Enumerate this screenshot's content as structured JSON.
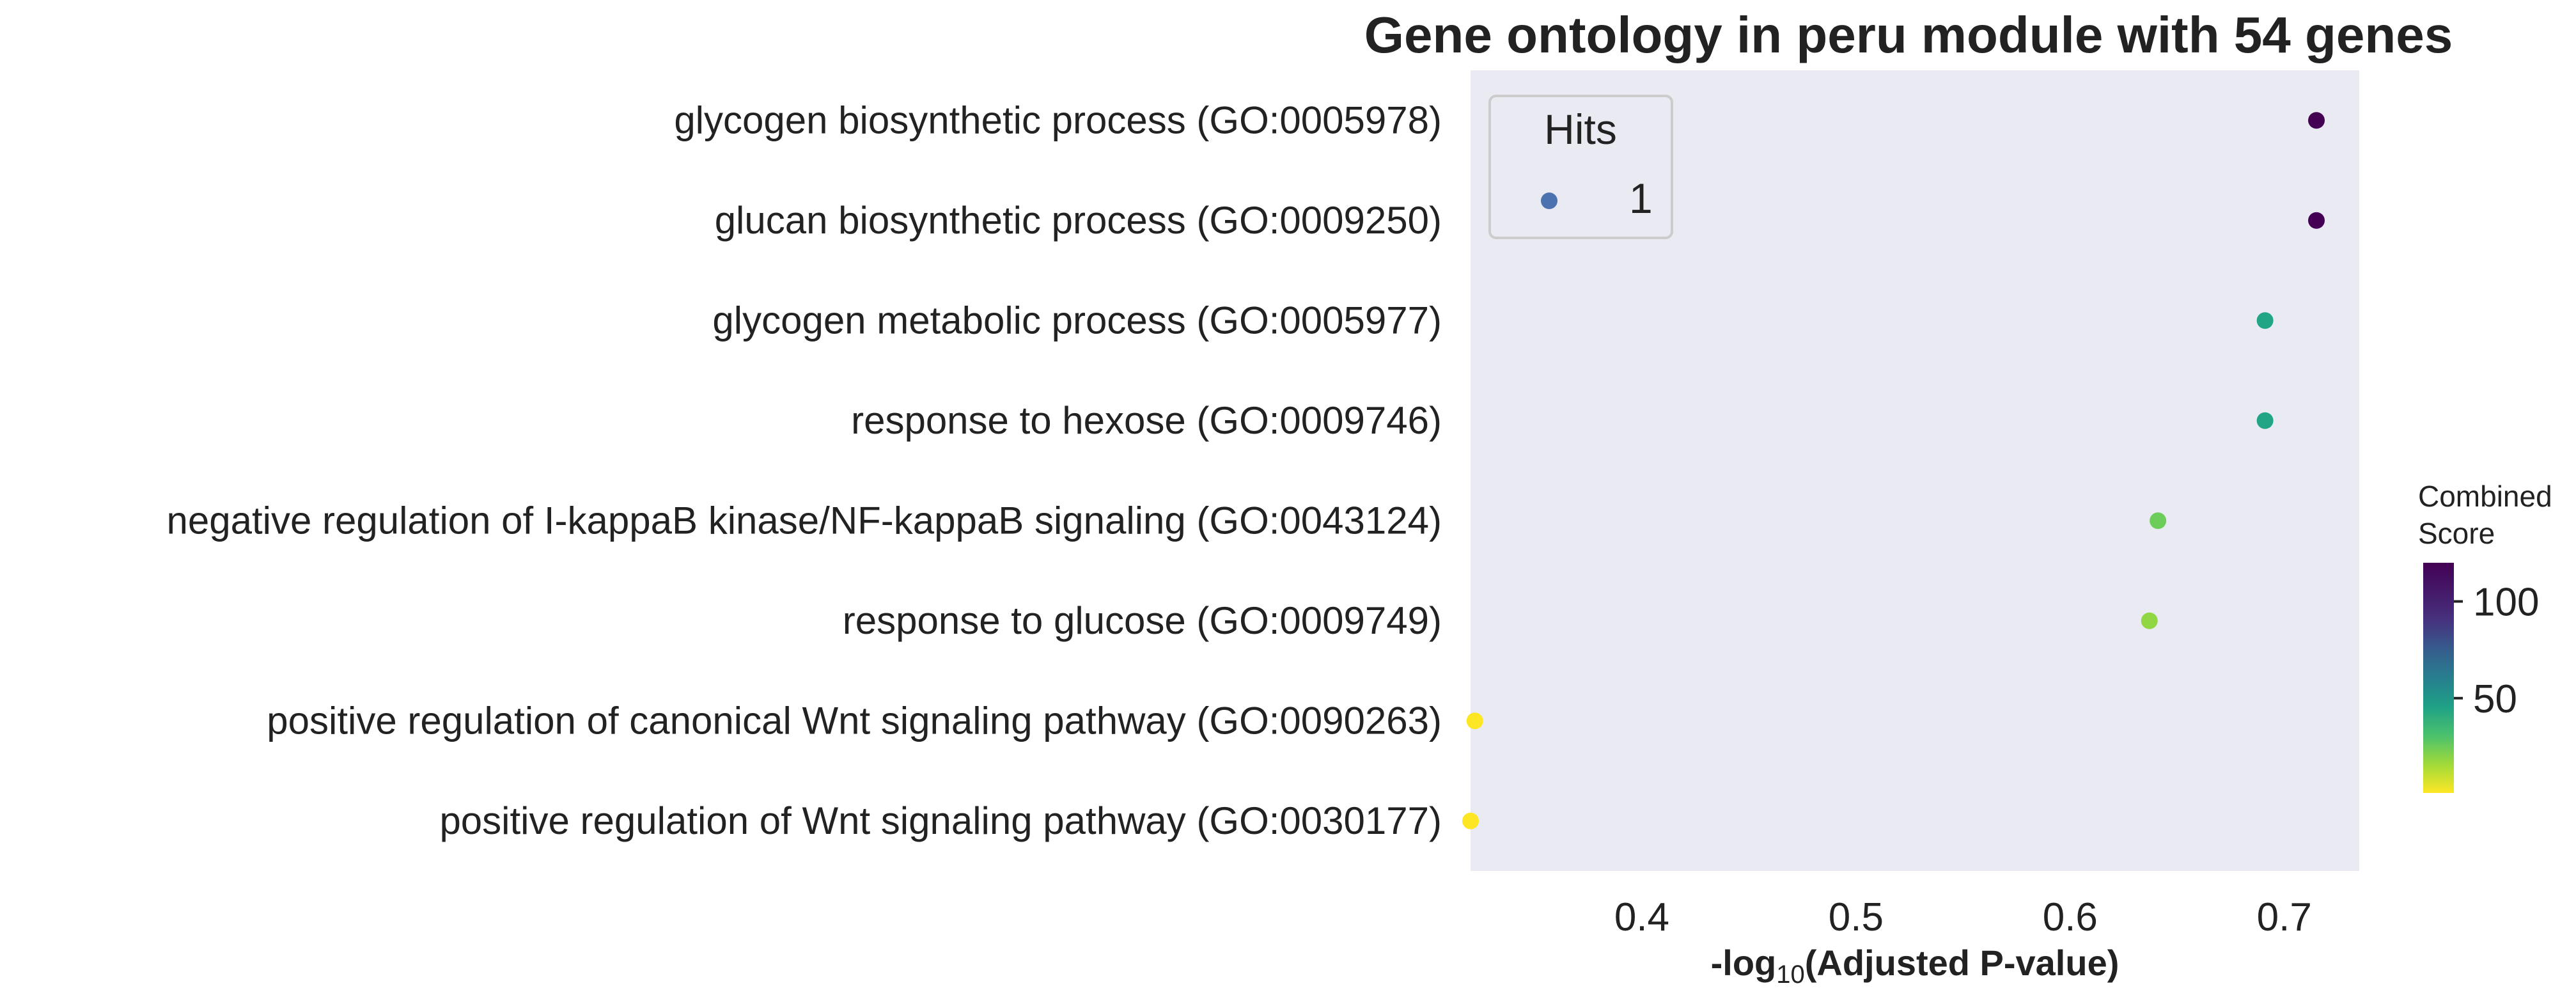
{
  "chart_data": {
    "type": "scatter",
    "title": "Gene ontology in peru module with 54 genes",
    "xlabel_prefix": "-log",
    "xlabel_sub": "10",
    "xlabel_suffix": "(Adjusted P-value)",
    "xlim": [
      0.32,
      0.735
    ],
    "xticks": [
      0.4,
      0.5,
      0.6,
      0.7
    ],
    "xtick_labels": [
      "0.4",
      "0.5",
      "0.6",
      "0.7"
    ],
    "grid": false,
    "background": "#eaeaf2",
    "categories": [
      "glycogen biosynthetic process (GO:0005978)",
      "glucan biosynthetic process (GO:0009250)",
      "glycogen metabolic process (GO:0005977)",
      "response to hexose (GO:0009746)",
      "negative regulation of I-kappaB kinase/NF-kappaB signaling (GO:0043124)",
      "response to glucose (GO:0009749)",
      "positive regulation of canonical Wnt signaling pathway (GO:0090263)",
      "positive regulation of Wnt signaling pathway (GO:0030177)"
    ],
    "x": [
      0.715,
      0.715,
      0.691,
      0.691,
      0.641,
      0.637,
      0.322,
      0.32
    ],
    "combined_score": [
      118,
      118,
      40,
      40,
      25,
      22,
      2,
      2
    ],
    "point_colors": [
      "#440154",
      "#440154",
      "#21a585",
      "#21a585",
      "#6ccd5a",
      "#90d743",
      "#fde725",
      "#fde725"
    ],
    "legend": {
      "title": "Hits",
      "placement": "top-left",
      "entries": [
        {
          "label": "1",
          "color": "#4c72b0"
        }
      ]
    },
    "colorbar": {
      "title_line1": "Combined",
      "title_line2": "Score",
      "colormap": "viridis_r",
      "range": [
        1,
        120
      ],
      "ticks": [
        50,
        100
      ],
      "tick_labels": [
        "50",
        "100"
      ]
    }
  }
}
